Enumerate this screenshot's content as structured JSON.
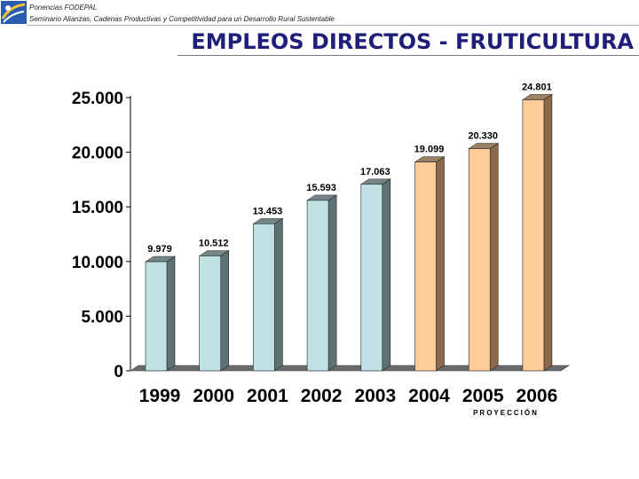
{
  "header": {
    "line1": "Ponencias FODEPAL",
    "line2": "Seminario Alianzas, Cadenas Productivas y Competitividad para un Desarrollo Rural Sustentable"
  },
  "page_title": "EMPLEOS DIRECTOS - FRUTICULTURA",
  "chart_data": {
    "type": "bar",
    "title": "",
    "xlabel": "",
    "ylabel": "",
    "categories": [
      "1999",
      "2000",
      "2001",
      "2002",
      "2003",
      "2004",
      "2005",
      "2006"
    ],
    "values": [
      9979,
      10512,
      13453,
      15593,
      17063,
      19099,
      20330,
      24801
    ],
    "value_labels": [
      "9.979",
      "10.512",
      "13.453",
      "15.593",
      "17.063",
      "19.099",
      "20.330",
      "24.801"
    ],
    "projected": [
      false,
      false,
      false,
      false,
      false,
      true,
      true,
      true
    ],
    "ylim": [
      0,
      25000
    ],
    "yticks": [
      0,
      5000,
      10000,
      15000,
      20000,
      25000
    ],
    "ytick_labels": [
      "0",
      "5.000",
      "10.000",
      "15.000",
      "20.000",
      "25.000"
    ],
    "grid": false,
    "annotation": "PROYECCIÓN",
    "colors": {
      "actual": "#bfe1e3",
      "projected": "#fccc99",
      "actual_side": "#5e7175",
      "projected_side": "#8a6a4a",
      "floor": "#6b6b6b"
    }
  }
}
